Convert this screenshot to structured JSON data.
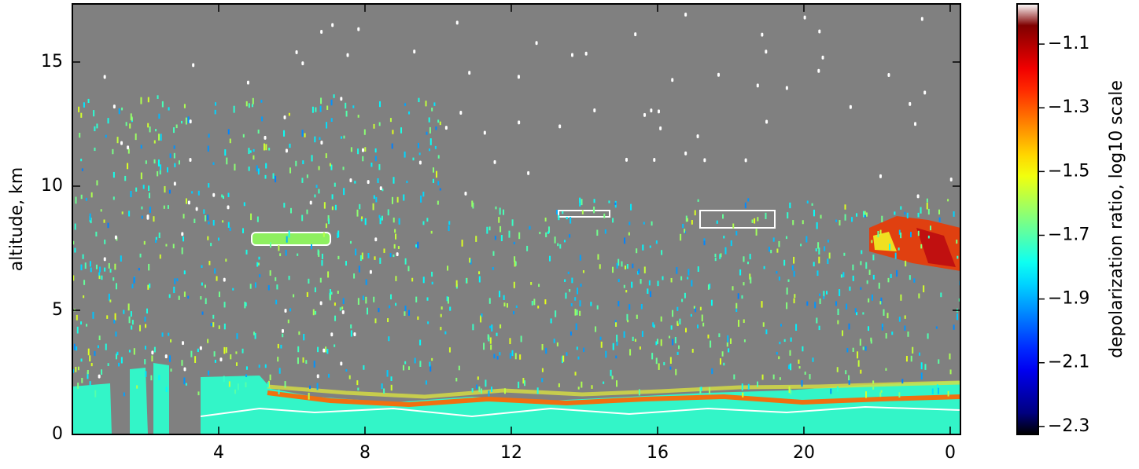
{
  "chart_data": {
    "type": "heatmap",
    "y_label": "altitude, km",
    "colorbar_label": "depolarization ratio, log10 scale",
    "colormap": "jet",
    "xlim": [
      0,
      24.28
    ],
    "xticks": [
      4,
      8,
      12,
      16,
      20,
      {
        "value": 24,
        "label": "0"
      }
    ],
    "ylim": [
      0,
      17.34
    ],
    "yticks": [
      0,
      5,
      10,
      15
    ],
    "clim": [
      -2.325,
      -0.974
    ],
    "cticks": [
      {
        "value": -1.1,
        "label": "−1.1"
      },
      {
        "value": -1.3,
        "label": "−1.3"
      },
      {
        "value": -1.5,
        "label": "−1.5"
      },
      {
        "value": -1.7,
        "label": "−1.7"
      },
      {
        "value": -1.9,
        "label": "−1.9"
      },
      {
        "value": -2.1,
        "label": "−2.1"
      },
      {
        "value": -2.3,
        "label": "−2.3"
      }
    ]
  }
}
